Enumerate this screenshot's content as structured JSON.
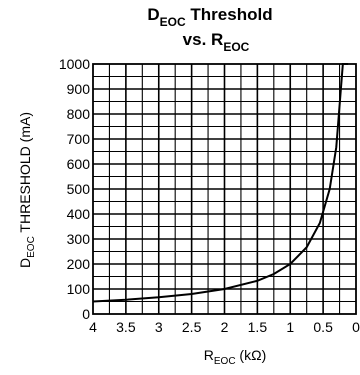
{
  "chart_data": {
    "type": "line",
    "title": {
      "line1_main": "D",
      "line1_sub": "EOC",
      "line1_rest": " Threshold",
      "line2_main": "vs. R",
      "line2_sub": "EOC"
    },
    "xlabel": {
      "main": "R",
      "sub": "EOC",
      "rest": " (kΩ)"
    },
    "ylabel": {
      "main": "D",
      "sub": "EOC",
      "rest": " THRESHOLD (mA)"
    },
    "xlim": [
      4,
      0
    ],
    "ylim": [
      0,
      1000
    ],
    "x_ticks": [
      4,
      3.5,
      3,
      2.5,
      2,
      1.5,
      1,
      0.5,
      0
    ],
    "x_tick_labels": [
      "4",
      "3.5",
      "3",
      "2.5",
      "2",
      "1.5",
      "1",
      "0.5",
      "0"
    ],
    "y_ticks": [
      0,
      100,
      200,
      300,
      400,
      500,
      600,
      700,
      800,
      900,
      1000
    ],
    "y_tick_labels": [
      "0",
      "100",
      "200",
      "300",
      "400",
      "500",
      "600",
      "700",
      "800",
      "900",
      "1000"
    ],
    "x_minor_step": 0.25,
    "y_minor_step": 50,
    "grid": true,
    "series": [
      {
        "x": [
          4.0,
          3.5,
          3.0,
          2.5,
          2.0,
          1.5,
          1.25,
          1.0,
          0.75,
          0.55,
          0.4,
          0.3,
          0.2,
          0.12
        ],
        "y": [
          50,
          57,
          67,
          80,
          100,
          133,
          160,
          200,
          267,
          364,
          500,
          667,
          1000,
          1000
        ]
      }
    ]
  }
}
